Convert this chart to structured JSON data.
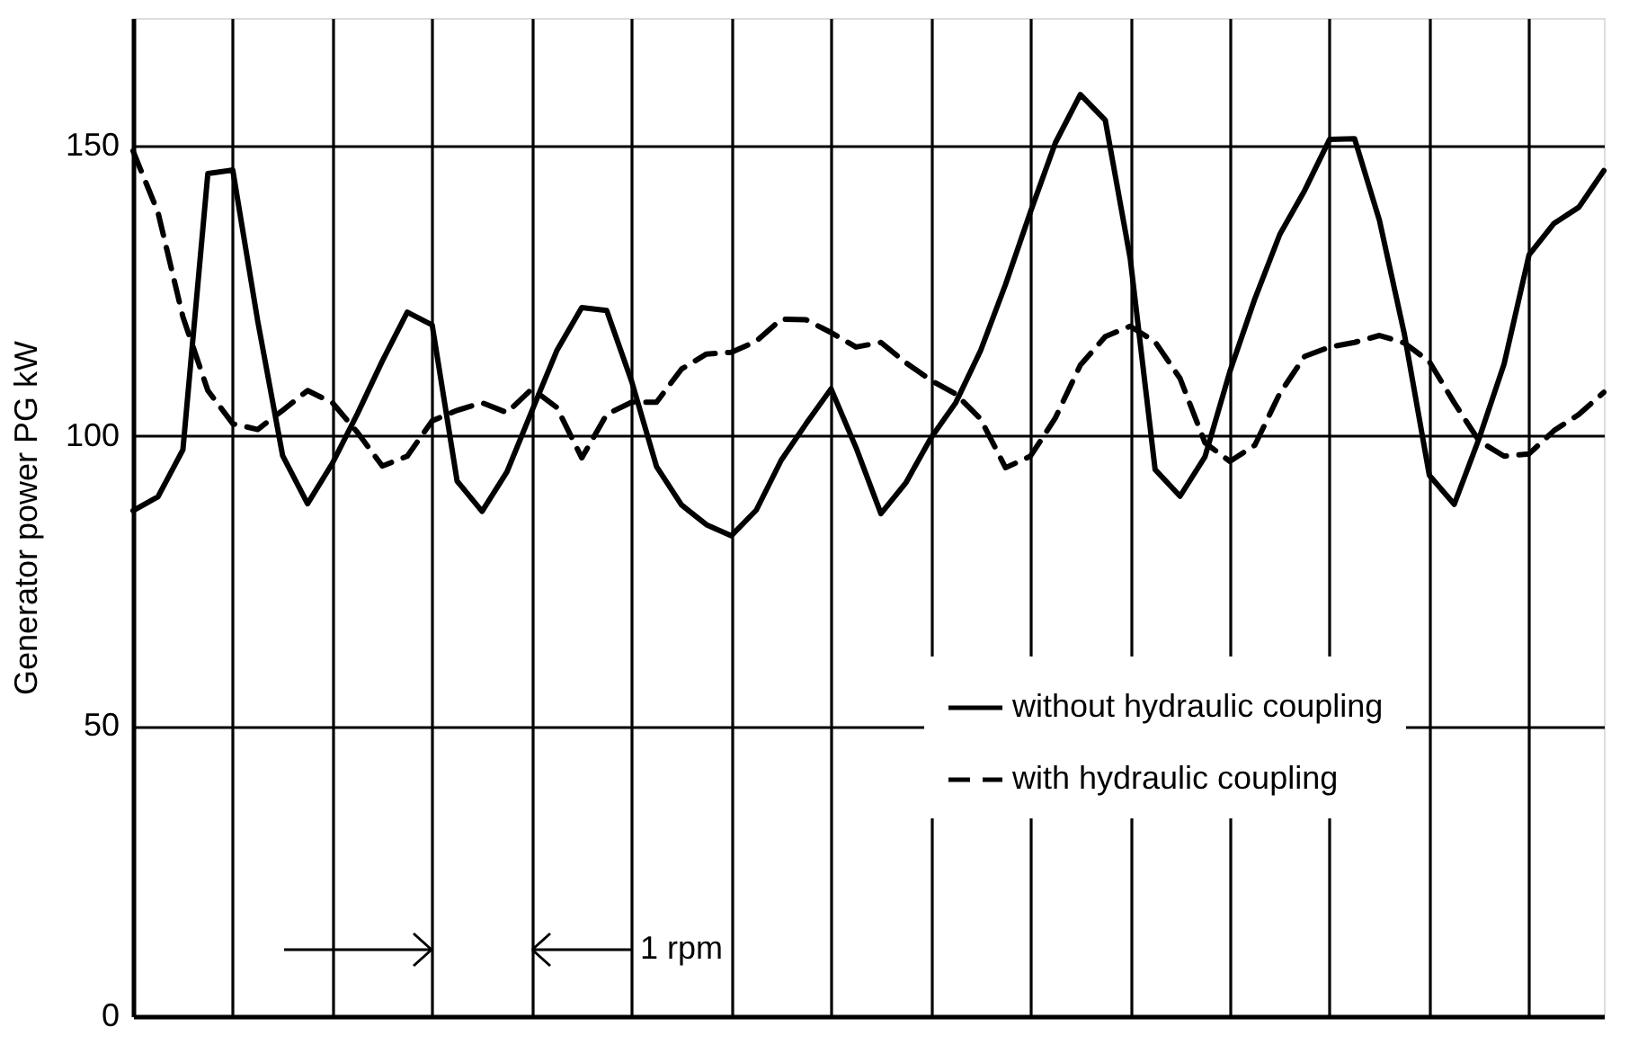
{
  "chart_data": {
    "type": "line",
    "ylabel": "Generator power PG kW",
    "categories": [
      null,
      null,
      null,
      null,
      null,
      null,
      null,
      null,
      null,
      null,
      null,
      null,
      null,
      null,
      null,
      null,
      null,
      null,
      null,
      null,
      null,
      null,
      null,
      null,
      null,
      null,
      null,
      null,
      null,
      null,
      null,
      null,
      null,
      null,
      null,
      null,
      null,
      null,
      null,
      null,
      null,
      null,
      null,
      null,
      null,
      null,
      null,
      null,
      null,
      null,
      null,
      null,
      null,
      null,
      null,
      null,
      null,
      null,
      null,
      null
    ],
    "ylim": [
      0,
      172
    ],
    "yticks": [
      0,
      50,
      100,
      150
    ],
    "tick_labels": "y",
    "grid": true,
    "legend": "bottom right",
    "marker": "none",
    "annotations": [
      "1 rpm"
    ],
    "series": [
      {
        "name": "without hydraulic coupling",
        "color": "#000000",
        "line_style": "solid",
        "values": [
          87.1,
          89.5,
          97.6,
          145.2,
          145.8,
          119.8,
          96.6,
          88.3,
          95.3,
          103.8,
          112.9,
          121.3,
          119.1,
          92.2,
          87.0,
          93.8,
          104.3,
          114.7,
          122.1,
          121.6,
          109.4,
          94.7,
          88.1,
          84.7,
          82.8,
          87.2,
          95.8,
          102.1,
          108.1,
          98.0,
          86.6,
          91.9,
          99.6,
          105.7,
          114.7,
          126.1,
          138.6,
          150.5,
          158.8,
          154.4,
          130.6,
          94.2,
          89.6,
          96.4,
          111.1,
          123.6,
          134.7,
          142.3,
          151.1,
          151.2,
          137.1,
          117.5,
          93.2,
          88.2,
          99.6,
          112.4,
          131.2,
          136.6,
          139.4,
          145.7
        ]
      },
      {
        "name": "with hydraulic coupling",
        "color": "#000000",
        "line_style": "dashed",
        "values": [
          149.1,
          138.5,
          120.5,
          107.8,
          102.1,
          101.1,
          104.4,
          107.8,
          105.7,
          100.6,
          94.8,
          96.5,
          102.6,
          104.4,
          105.7,
          104.0,
          108.1,
          104.9,
          96.2,
          103.7,
          105.8,
          105.8,
          111.5,
          114.1,
          114.4,
          116.3,
          120.1,
          120.0,
          117.8,
          115.3,
          116.1,
          112.6,
          109.6,
          107.2,
          102.9,
          94.5,
          96.5,
          103.1,
          112.2,
          117.1,
          118.9,
          116.2,
          109.9,
          98.8,
          95.6,
          98.4,
          107.3,
          113.7,
          115.3,
          116.1,
          117.3,
          116.0,
          112.8,
          105.7,
          99.1,
          96.5,
          96.9,
          100.9,
          103.7,
          107.5
        ]
      }
    ]
  }
}
